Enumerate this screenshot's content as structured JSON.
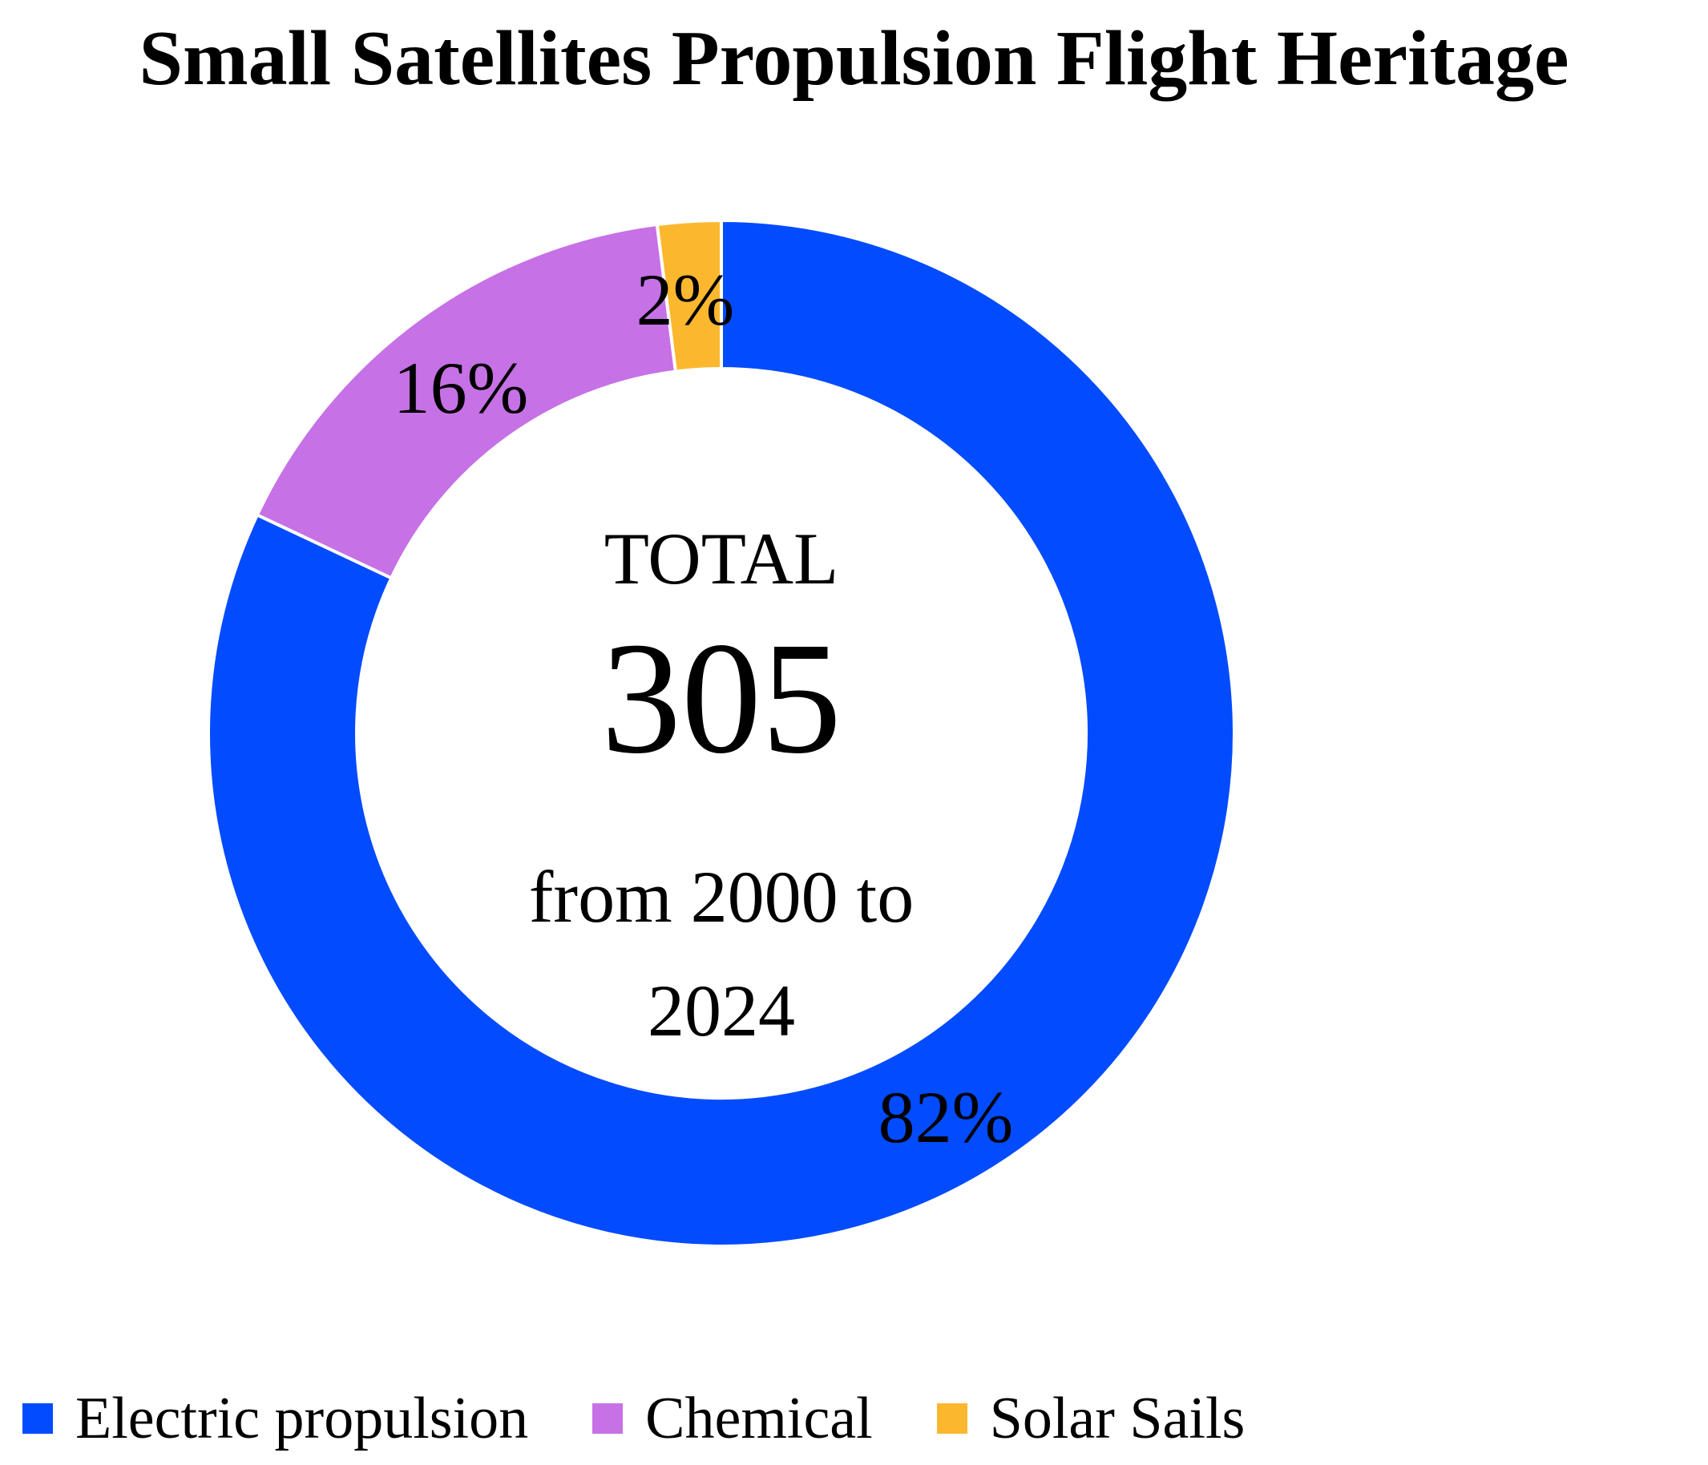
{
  "chart_data": {
    "type": "pie",
    "variant": "donut",
    "title": "Small Satellites Propulsion Flight Heritage",
    "slices": [
      {
        "label": "Electric propulsion",
        "value": 82,
        "display": "82%",
        "color": "#034BFE"
      },
      {
        "label": "Chemical",
        "value": 16,
        "display": "16%",
        "color": "#C671E5"
      },
      {
        "label": "Solar Sails",
        "value": 2,
        "display": "2%",
        "color": "#FBB82F"
      }
    ],
    "center": {
      "line1": "TOTAL",
      "total": "305",
      "line3": "from 2000 to",
      "line4": "2024"
    },
    "legend_position": "bottom"
  }
}
